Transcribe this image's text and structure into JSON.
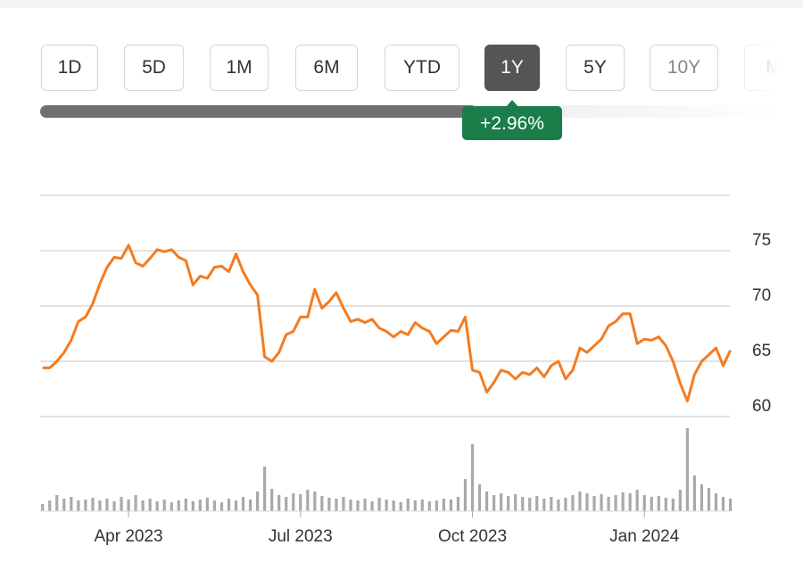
{
  "range_buttons": [
    "1D",
    "5D",
    "1M",
    "6M",
    "YTD",
    "1Y",
    "5Y",
    "10Y",
    "M"
  ],
  "selected": 5,
  "change_badge": "+2.96%",
  "chart_data": {
    "type": "line",
    "categories": [
      null,
      null,
      null,
      null,
      null,
      null,
      null,
      null,
      null,
      null,
      null,
      null,
      "Apr 2023",
      null,
      null,
      null,
      null,
      null,
      null,
      null,
      null,
      null,
      null,
      null,
      null,
      null,
      null,
      null,
      null,
      null,
      null,
      null,
      null,
      null,
      null,
      null,
      "Jul 2023",
      null,
      null,
      null,
      null,
      null,
      null,
      null,
      null,
      null,
      null,
      null,
      null,
      null,
      null,
      null,
      null,
      null,
      null,
      null,
      null,
      null,
      null,
      null,
      "Oct 2023",
      null,
      null,
      null,
      null,
      null,
      null,
      null,
      null,
      null,
      null,
      null,
      null,
      null,
      null,
      null,
      null,
      null,
      null,
      null,
      null,
      null,
      null,
      null,
      "Jan 2024",
      null,
      null,
      null,
      null,
      null,
      null,
      null,
      null,
      null,
      null,
      null,
      null
    ],
    "series": [
      {
        "color": "#f47b20",
        "values": [
          64.4,
          64.4,
          65.0,
          65.8,
          66.9,
          68.6,
          69.0,
          70.2,
          72.0,
          73.5,
          74.4,
          74.3,
          75.5,
          73.9,
          73.6,
          74.3,
          75.1,
          74.9,
          75.1,
          74.4,
          74.1,
          71.9,
          72.7,
          72.5,
          73.5,
          73.6,
          73.1,
          74.7,
          73.1,
          71.9,
          71.0,
          65.4,
          65.0,
          65.8,
          67.4,
          67.7,
          69.0,
          69.0,
          71.5,
          69.8,
          70.4,
          71.2,
          69.8,
          68.6,
          68.8,
          68.5,
          68.8,
          68.0,
          67.7,
          67.2,
          67.7,
          67.4,
          68.5,
          68.0,
          67.7,
          66.6,
          67.2,
          67.8,
          67.7,
          69.0,
          64.2,
          64.0,
          62.2,
          63.1,
          64.2,
          64.0,
          63.4,
          64.0,
          63.8,
          64.4,
          63.6,
          64.6,
          65.0,
          63.4,
          64.2,
          66.2,
          65.8,
          66.4,
          67.0,
          68.2,
          68.6,
          69.3,
          69.3,
          66.6,
          67.0,
          66.9,
          67.2,
          66.4,
          65.0,
          63.0,
          61.4,
          63.8,
          65.0,
          65.6,
          66.2,
          64.6,
          66.0
        ]
      }
    ],
    "volume": {
      "color": "#a9a9a9",
      "values": [
        8,
        12,
        18,
        14,
        16,
        12,
        13,
        15,
        12,
        14,
        11,
        16,
        13,
        18,
        12,
        14,
        11,
        13,
        10,
        12,
        14,
        11,
        13,
        15,
        12,
        10,
        14,
        12,
        16,
        13,
        22,
        50,
        25,
        18,
        16,
        20,
        19,
        24,
        22,
        17,
        15,
        14,
        16,
        13,
        12,
        14,
        11,
        15,
        13,
        12,
        10,
        14,
        12,
        13,
        11,
        12,
        14,
        13,
        16,
        36,
        75,
        30,
        22,
        18,
        20,
        17,
        19,
        16,
        15,
        17,
        14,
        16,
        13,
        15,
        18,
        22,
        20,
        17,
        19,
        16,
        18,
        21,
        20,
        24,
        18,
        16,
        17,
        15,
        14,
        24,
        93,
        40,
        30,
        26,
        20,
        16,
        14
      ]
    },
    "ylim": [
      60,
      80
    ],
    "yticks": [
      60,
      65,
      70,
      75
    ],
    "grid": true
  }
}
